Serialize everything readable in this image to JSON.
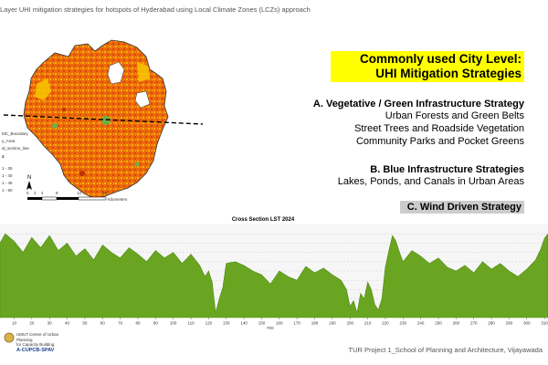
{
  "slide": {
    "title": "Layer UHI mitigation strategies for hotspots of Hyderabad using Local Climate Zones (LCZs) approach"
  },
  "map": {
    "legend_items": [
      "MC_Boundary",
      "y_Area",
      "al_section_line",
      "4"
    ],
    "legend_classes": [
      "1 - 35",
      "1 - 40",
      "1 - 45",
      "1 - 50"
    ],
    "north_label": "N",
    "scale_ticks": [
      "0",
      "2",
      "4",
      "8",
      "12",
      "16"
    ],
    "scale_unit": "Kilometers",
    "colors": {
      "hot": "#e8550a",
      "warm": "#f28a10",
      "mild": "#f7c200",
      "cool": "#6ab04c"
    }
  },
  "heading": {
    "line1": "Commonly used City Level:",
    "line2": "UHI Mitigation Strategies"
  },
  "strategies": {
    "a": {
      "title": "A. Vegetative / Green Infrastructure Strategy",
      "items": [
        "Urban Forests and Green Belts",
        "Street Trees and Roadside Vegetation",
        "Community Parks and Pocket Greens"
      ]
    },
    "b": {
      "title": "B. Blue Infrastructure Strategies",
      "items": [
        "Lakes, Ponds, and Canals in Urban Areas"
      ]
    },
    "c": {
      "title": "C. Wind Driven Strategy"
    }
  },
  "chart_data": {
    "type": "area",
    "title": "Cross Section LST 2024",
    "xlabel": "FID",
    "ylabel": "",
    "x_ticks": [
      10,
      20,
      30,
      40,
      50,
      60,
      70,
      80,
      90,
      100,
      110,
      120,
      130,
      140,
      150,
      160,
      170,
      180,
      190,
      200,
      210,
      220,
      230,
      240,
      250,
      260,
      270,
      280,
      290,
      300,
      310
    ],
    "xlim": [
      2,
      312
    ],
    "ylim": [
      0,
      100
    ],
    "grid": true,
    "color": "#6aa521",
    "x": [
      2,
      5,
      10,
      15,
      20,
      25,
      30,
      35,
      40,
      45,
      50,
      55,
      60,
      65,
      70,
      75,
      80,
      85,
      90,
      95,
      100,
      105,
      110,
      115,
      118,
      120,
      122,
      124,
      126,
      128,
      130,
      135,
      140,
      145,
      150,
      155,
      160,
      165,
      170,
      175,
      180,
      185,
      190,
      195,
      198,
      200,
      202,
      204,
      206,
      208,
      210,
      212,
      214,
      216,
      218,
      220,
      222,
      224,
      226,
      228,
      230,
      235,
      240,
      245,
      250,
      255,
      260,
      265,
      270,
      275,
      280,
      285,
      290,
      295,
      300,
      305,
      308,
      310,
      312
    ],
    "values": [
      80,
      90,
      82,
      70,
      86,
      75,
      88,
      72,
      80,
      66,
      74,
      62,
      78,
      70,
      64,
      75,
      68,
      60,
      72,
      64,
      70,
      58,
      68,
      56,
      44,
      50,
      38,
      5,
      20,
      32,
      58,
      60,
      56,
      50,
      46,
      36,
      50,
      44,
      40,
      55,
      48,
      53,
      46,
      40,
      30,
      12,
      18,
      5,
      26,
      20,
      38,
      30,
      14,
      8,
      20,
      54,
      72,
      88,
      82,
      70,
      60,
      72,
      66,
      58,
      64,
      54,
      50,
      56,
      48,
      60,
      52,
      58,
      50,
      44,
      52,
      62,
      74,
      85,
      90
    ]
  },
  "footer": {
    "left_line1": "UMUT Centre of Urban Planning",
    "left_line2": "for Capacity Building",
    "left_line3": "A-CUPCB-SPAV",
    "right": "TUR Project 1_School of Planning and Architecture, Vijayawada"
  }
}
